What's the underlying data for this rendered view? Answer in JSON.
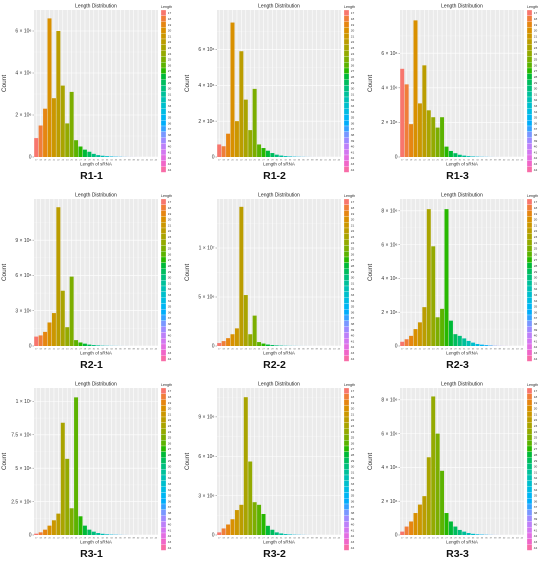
{
  "figure": {
    "panel_title": "Length Distribution",
    "xlabel": "Length of sRNA",
    "ylabel": "Count",
    "legend_title": "Length",
    "lengths": [
      "17",
      "18",
      "19",
      "20",
      "21",
      "22",
      "23",
      "24",
      "25",
      "26",
      "27",
      "28",
      "29",
      "30",
      "31",
      "32",
      "33",
      "34",
      "35",
      "36",
      "37",
      "38",
      "39",
      "40",
      "41",
      "42",
      "43",
      "44"
    ],
    "colors": [
      "#F8766D",
      "#F07E3A",
      "#E68612",
      "#D99000",
      "#CB9700",
      "#BB9D00",
      "#A9A400",
      "#94AA00",
      "#7CAE00",
      "#5CB300",
      "#28B800",
      "#00BA38",
      "#00BD5E",
      "#00BF7D",
      "#00C09A",
      "#00C0B5",
      "#00BFCC",
      "#00BCE2",
      "#00B6F3",
      "#00ADFA",
      "#35A2FF",
      "#7997FF",
      "#9F8AFF",
      "#BD80F9",
      "#D277F0",
      "#E36EE2",
      "#F066C8",
      "#F86CA7"
    ]
  },
  "chart_data": [
    {
      "type": "bar",
      "caption": "R1-1",
      "ylim": [
        0,
        7000000
      ],
      "yticks": [
        {
          "v": 0,
          "label": "0"
        },
        {
          "v": 2000000,
          "label": "2 × 10⁶"
        },
        {
          "v": 4000000,
          "label": "4 × 10⁶"
        },
        {
          "v": 6000000,
          "label": "6 × 10⁶"
        }
      ],
      "values": [
        900000,
        1500000,
        2300000,
        6600000,
        2800000,
        6000000,
        3400000,
        1600000,
        3100000,
        800000,
        500000,
        350000,
        250000,
        150000,
        90000,
        60000,
        40000,
        25000,
        15000,
        10000,
        5000,
        3000,
        2000,
        1000,
        0,
        0,
        0,
        0
      ]
    },
    {
      "type": "bar",
      "caption": "R1-2",
      "ylim": [
        0,
        8200000
      ],
      "yticks": [
        {
          "v": 0,
          "label": "0"
        },
        {
          "v": 2000000,
          "label": "2 × 10⁶"
        },
        {
          "v": 4000000,
          "label": "4 × 10⁶"
        },
        {
          "v": 6000000,
          "label": "6 × 10⁶"
        }
      ],
      "values": [
        700000,
        600000,
        1300000,
        7500000,
        2000000,
        5900000,
        3200000,
        1500000,
        3800000,
        700000,
        500000,
        350000,
        220000,
        130000,
        80000,
        50000,
        30000,
        20000,
        12000,
        8000,
        4000,
        2000,
        1000,
        500,
        0,
        0,
        0,
        0
      ]
    },
    {
      "type": "bar",
      "caption": "R1-3",
      "ylim": [
        0,
        8500000
      ],
      "yticks": [
        {
          "v": 0,
          "label": "0"
        },
        {
          "v": 2000000,
          "label": "2 × 10⁶"
        },
        {
          "v": 4000000,
          "label": "4 × 10⁶"
        },
        {
          "v": 6000000,
          "label": "6 × 10⁶"
        }
      ],
      "values": [
        5100000,
        4200000,
        1900000,
        7900000,
        3100000,
        5300000,
        2700000,
        2300000,
        1700000,
        2300000,
        600000,
        350000,
        220000,
        130000,
        80000,
        50000,
        30000,
        20000,
        12000,
        8000,
        4000,
        2000,
        1000,
        500,
        0,
        0,
        0,
        0
      ]
    },
    {
      "type": "bar",
      "caption": "R2-1",
      "ylim": [
        0,
        12500000
      ],
      "yticks": [
        {
          "v": 0,
          "label": "0"
        },
        {
          "v": 3000000,
          "label": "3 × 10⁶"
        },
        {
          "v": 6000000,
          "label": "6 × 10⁶"
        },
        {
          "v": 9000000,
          "label": "9 × 10⁶"
        }
      ],
      "values": [
        800000,
        900000,
        1200000,
        2000000,
        2800000,
        11800000,
        4700000,
        1600000,
        5900000,
        500000,
        300000,
        200000,
        120000,
        80000,
        50000,
        30000,
        20000,
        12000,
        8000,
        4000,
        2000,
        1000,
        500,
        0,
        0,
        0,
        0,
        0
      ]
    },
    {
      "type": "bar",
      "caption": "R2-2",
      "ylim": [
        0,
        15000000
      ],
      "yticks": [
        {
          "v": 0,
          "label": "0"
        },
        {
          "v": 5000000,
          "label": "5 × 10⁶"
        },
        {
          "v": 10000000,
          "label": "1 × 10⁷"
        }
      ],
      "values": [
        300000,
        500000,
        800000,
        1200000,
        1800000,
        14200000,
        5200000,
        1200000,
        3100000,
        400000,
        250000,
        150000,
        100000,
        60000,
        40000,
        25000,
        15000,
        10000,
        5000,
        3000,
        2000,
        1000,
        500,
        0,
        0,
        0,
        0,
        0
      ]
    },
    {
      "type": "bar",
      "caption": "R2-3",
      "ylim": [
        0,
        8700000
      ],
      "yticks": [
        {
          "v": 0,
          "label": "0"
        },
        {
          "v": 2000000,
          "label": "2 × 10⁶"
        },
        {
          "v": 4000000,
          "label": "4 × 10⁶"
        },
        {
          "v": 6000000,
          "label": "6 × 10⁶"
        },
        {
          "v": 8000000,
          "label": "8 × 10⁶"
        }
      ],
      "values": [
        250000,
        400000,
        600000,
        1000000,
        1400000,
        2300000,
        8100000,
        5900000,
        1700000,
        2200000,
        8100000,
        1500000,
        700000,
        600000,
        450000,
        300000,
        200000,
        120000,
        80000,
        50000,
        30000,
        15000,
        8000,
        4000,
        2000,
        0,
        0,
        0
      ]
    },
    {
      "type": "bar",
      "caption": "R3-1",
      "ylim": [
        0,
        11000000
      ],
      "yticks": [
        {
          "v": 0,
          "label": "0"
        },
        {
          "v": 2500000,
          "label": "2.5 × 10⁶"
        },
        {
          "v": 5000000,
          "label": "5 × 10⁶"
        },
        {
          "v": 7500000,
          "label": "7.5 × 10⁶"
        },
        {
          "v": 10000000,
          "label": "1 × 10⁷"
        }
      ],
      "values": [
        100000,
        200000,
        400000,
        700000,
        1100000,
        1600000,
        8400000,
        5700000,
        2000000,
        10300000,
        1400000,
        700000,
        400000,
        250000,
        150000,
        90000,
        50000,
        30000,
        20000,
        10000,
        5000,
        2000,
        1000,
        0,
        0,
        0,
        0,
        0
      ]
    },
    {
      "type": "bar",
      "caption": "R3-2",
      "ylim": [
        0,
        11200000
      ],
      "yticks": [
        {
          "v": 0,
          "label": "0"
        },
        {
          "v": 3000000,
          "label": "3 × 10⁶"
        },
        {
          "v": 6000000,
          "label": "6 × 10⁶"
        },
        {
          "v": 9000000,
          "label": "9 × 10⁶"
        }
      ],
      "values": [
        200000,
        500000,
        800000,
        1200000,
        1900000,
        2300000,
        10500000,
        5600000,
        2500000,
        2300000,
        1600000,
        700000,
        400000,
        200000,
        120000,
        70000,
        40000,
        25000,
        15000,
        8000,
        4000,
        2000,
        1000,
        0,
        0,
        0,
        0,
        0
      ]
    },
    {
      "type": "bar",
      "caption": "R3-3",
      "ylim": [
        0,
        8700000
      ],
      "yticks": [
        {
          "v": 0,
          "label": "0"
        },
        {
          "v": 2000000,
          "label": "2 × 10⁶"
        },
        {
          "v": 4000000,
          "label": "4 × 10⁶"
        },
        {
          "v": 6000000,
          "label": "6 × 10⁶"
        },
        {
          "v": 8000000,
          "label": "8 × 10⁶"
        }
      ],
      "values": [
        200000,
        500000,
        800000,
        1300000,
        1800000,
        2300000,
        4600000,
        8200000,
        6000000,
        3800000,
        1300000,
        800000,
        500000,
        300000,
        200000,
        120000,
        70000,
        40000,
        25000,
        15000,
        8000,
        4000,
        2000,
        1000,
        0,
        0,
        0,
        0
      ]
    }
  ]
}
